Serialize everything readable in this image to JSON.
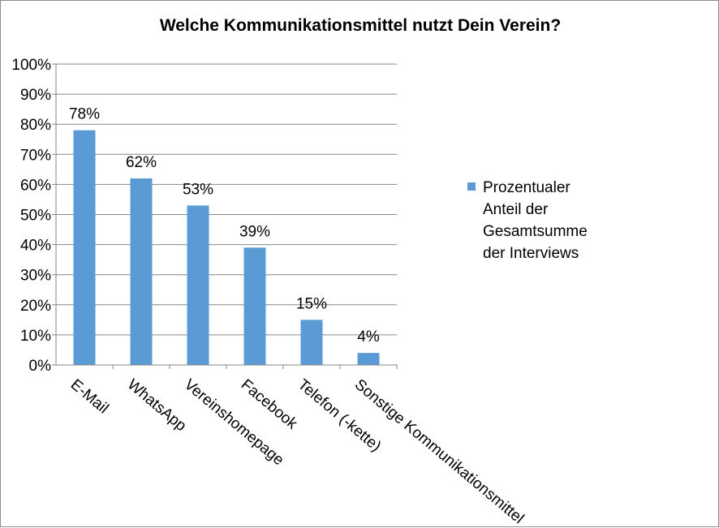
{
  "chart_data": {
    "type": "bar",
    "title": "Welche Kommunikationsmittel  nutzt Dein Verein?",
    "categories": [
      "E-Mail",
      "WhatsApp",
      "Vereinshomepage",
      "Facebook",
      "Telefon (-kette)",
      "Sonstige Kommunikationsmittel"
    ],
    "series": [
      {
        "name": "Prozentualer Anteil der Gesamtsumme der Interviews",
        "values": [
          78,
          62,
          53,
          39,
          15,
          4
        ],
        "labels": [
          "78%",
          "62%",
          "53%",
          "39%",
          "15%",
          "4%"
        ],
        "color": "#5b9bd5"
      }
    ],
    "legend_lines": [
      "Prozentualer",
      "Anteil der",
      "Gesamtsumme",
      "der Interviews"
    ],
    "yticks": [
      "0%",
      "10%",
      "20%",
      "30%",
      "40%",
      "50%",
      "60%",
      "70%",
      "80%",
      "90%",
      "100%"
    ],
    "ylim": [
      0,
      100
    ],
    "grid": true,
    "legend_position": "right"
  }
}
